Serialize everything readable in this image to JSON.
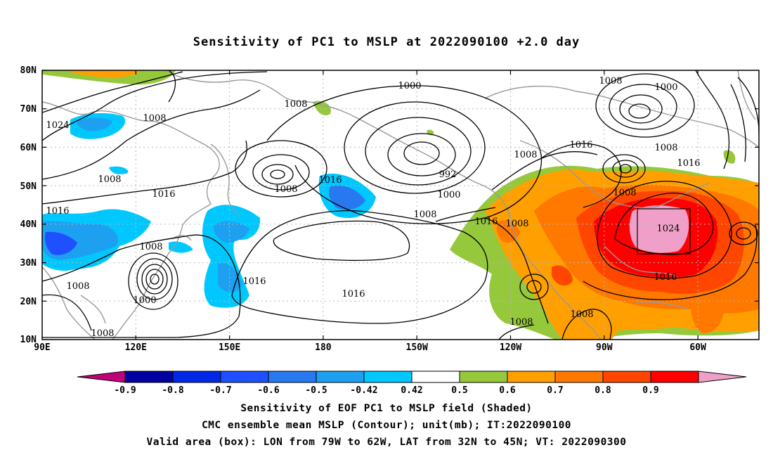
{
  "title": "Sensitivity of PC1 to MSLP at 2022090100 +2.0 day",
  "map": {
    "lat_labels": [
      "80N",
      "70N",
      "60N",
      "50N",
      "40N",
      "30N",
      "20N",
      "10N"
    ],
    "lon_labels": [
      "90E",
      "120E",
      "150E",
      "180",
      "150W",
      "120W",
      "90W",
      "60W"
    ],
    "extent": {
      "lon_west": "90E",
      "lon_east": "45W",
      "lat_south": "10N",
      "lat_north": "80N"
    },
    "contour_labels": [
      "1000",
      "1008",
      "1024",
      "1008",
      "1016",
      "1008",
      "1016",
      "992",
      "1000",
      "1008",
      "1016",
      "1008",
      "1008",
      "1000",
      "1008",
      "1016",
      "1016",
      "1008",
      "1024",
      "1016",
      "1016",
      "1008",
      "1008",
      "1008",
      "1000",
      "1008",
      "1008"
    ]
  },
  "colorbar": {
    "labels": [
      "-0.9",
      "-0.8",
      "-0.7",
      "-0.6",
      "-0.5",
      "-0.42",
      "0.42",
      "0.5",
      "0.6",
      "0.7",
      "0.8",
      "0.9"
    ],
    "colors": [
      "#0000a0",
      "#0028e6",
      "#1e50ff",
      "#2878f0",
      "#1ea0f0",
      "#00c8ff",
      "#ffffff",
      "#96c83c",
      "#ffa000",
      "#ff7800",
      "#ff4600",
      "#ff0000"
    ],
    "low_arrow_color": "#c00078",
    "high_arrow_color": "#f0a0c8"
  },
  "footer": {
    "line1": "Sensitivity of EOF PC1 to MSLP field (Shaded)",
    "line2": "CMC ensemble mean MSLP (Contour); unit(mb); IT:2022090100",
    "line3": "Valid area (box): LON from 79W to 62W, LAT from 32N to 45N; VT: 2022090300"
  }
}
